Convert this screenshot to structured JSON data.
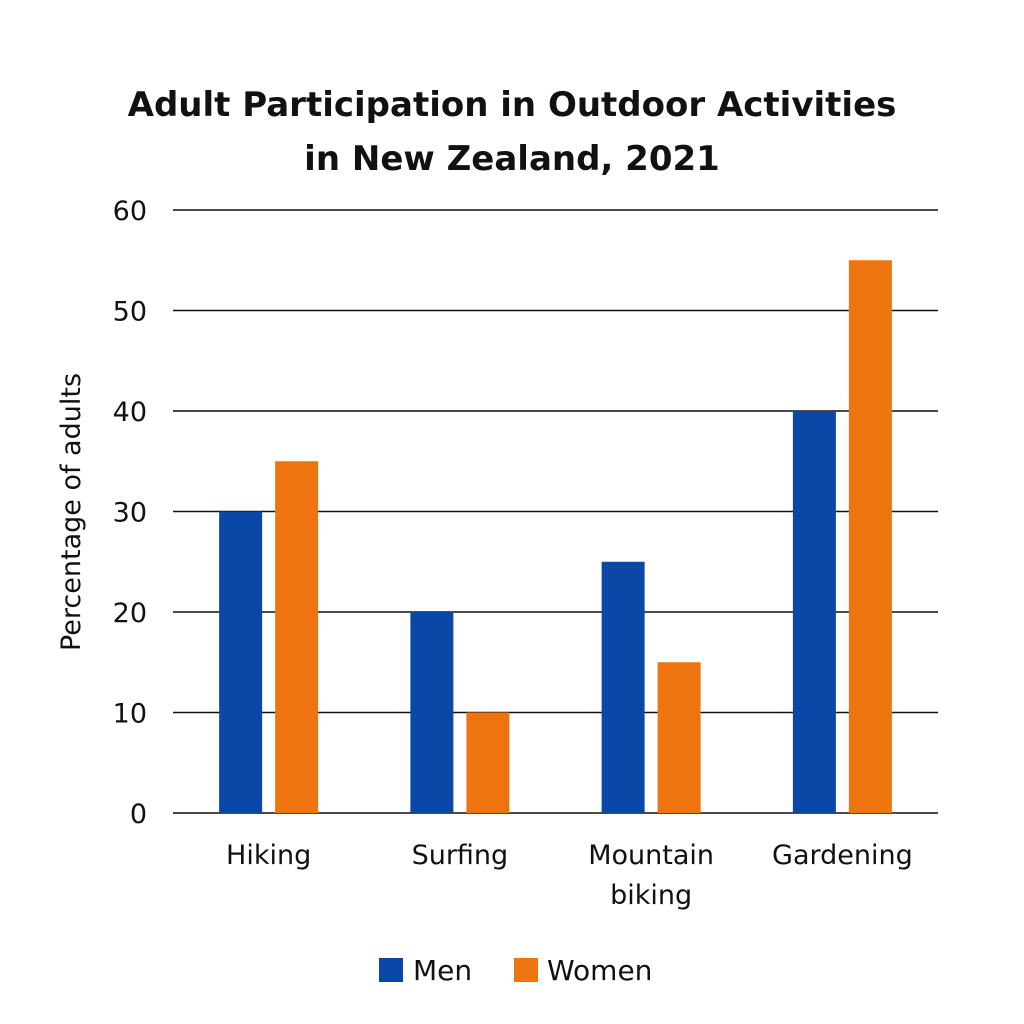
{
  "chart_data": {
    "type": "bar",
    "title": [
      "Adult Participation in Outdoor Activities",
      "in New Zealand, 2021"
    ],
    "ylabel": "Percentage of adults",
    "xlabel": "",
    "ylim": [
      0,
      60
    ],
    "yticks": [
      0,
      10,
      20,
      30,
      40,
      50,
      60
    ],
    "grid": true,
    "legend_position": "bottom",
    "categories": [
      [
        "Hiking"
      ],
      [
        "Surfing"
      ],
      [
        "Mountain",
        "biking"
      ],
      [
        "Gardening"
      ]
    ],
    "series": [
      {
        "name": "Men",
        "color": "#0A47A6",
        "values": [
          30,
          20,
          25,
          40
        ]
      },
      {
        "name": "Women",
        "color": "#EE7410",
        "values": [
          35,
          10,
          15,
          55
        ]
      }
    ]
  }
}
